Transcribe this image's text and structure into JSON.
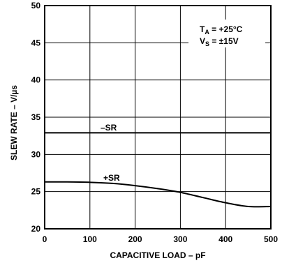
{
  "chart_data": {
    "type": "line",
    "xlabel": "CAPACITIVE LOAD – pF",
    "ylabel": "SLEW RATE – V/µs",
    "xlim": [
      0,
      500
    ],
    "ylim": [
      20,
      50
    ],
    "xticks": [
      0,
      100,
      200,
      300,
      400,
      500
    ],
    "yticks": [
      20,
      25,
      30,
      35,
      40,
      45,
      50
    ],
    "grid": true,
    "conditions": [
      {
        "main": "T",
        "sub": "A",
        "value": " = +25°C"
      },
      {
        "main": "V",
        "sub": "S",
        "value": " = ±15V"
      }
    ],
    "series": [
      {
        "name": "–SR",
        "x": [
          0,
          100,
          200,
          300,
          400,
          500
        ],
        "y": [
          32.9,
          32.9,
          32.9,
          32.9,
          32.9,
          32.9
        ]
      },
      {
        "name": "+SR",
        "x": [
          0,
          50,
          100,
          150,
          200,
          250,
          300,
          350,
          400,
          450,
          500
        ],
        "y": [
          26.3,
          26.3,
          26.25,
          26.1,
          25.8,
          25.4,
          24.9,
          24.2,
          23.5,
          23.0,
          23.0
        ]
      }
    ]
  }
}
